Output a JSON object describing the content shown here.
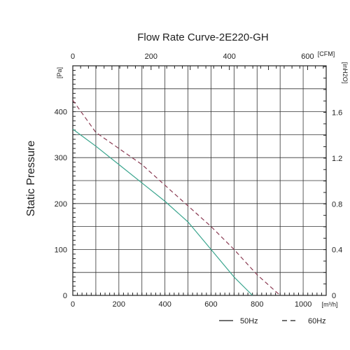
{
  "chart_data": {
    "type": "line",
    "title": "Flow Rate Curve-2E220-GH",
    "ylabel": "Static Pressure",
    "x_unit": "[m³/h]",
    "y_unit": "[Pa]",
    "x2_unit": "[CFM]",
    "y2_unit": "[inH2O]",
    "xlim": [
      0,
      1100
    ],
    "ylim": [
      0,
      500
    ],
    "x_ticks": [
      0,
      200,
      400,
      600,
      800,
      1000
    ],
    "y_ticks": [
      0,
      100,
      200,
      300,
      400
    ],
    "x2_ticks": [
      0,
      200,
      400,
      600
    ],
    "y2_ticks": [
      0,
      0.4,
      0.8,
      1.2,
      1.6
    ],
    "grid": true,
    "legend_position": "bottom-right",
    "series": [
      {
        "name": "50Hz",
        "color": "#3aa58e",
        "dash": "solid",
        "x": [
          0,
          100,
          200,
          300,
          400,
          500,
          600,
          700,
          780
        ],
        "y": [
          362,
          325,
          285,
          245,
          205,
          160,
          100,
          40,
          0
        ]
      },
      {
        "name": "60Hz",
        "color": "#8a3a52",
        "dash": "dashed",
        "x": [
          0,
          100,
          200,
          300,
          400,
          500,
          600,
          700,
          800,
          900
        ],
        "y": [
          425,
          355,
          320,
          285,
          240,
          195,
          150,
          100,
          45,
          0
        ]
      }
    ]
  }
}
